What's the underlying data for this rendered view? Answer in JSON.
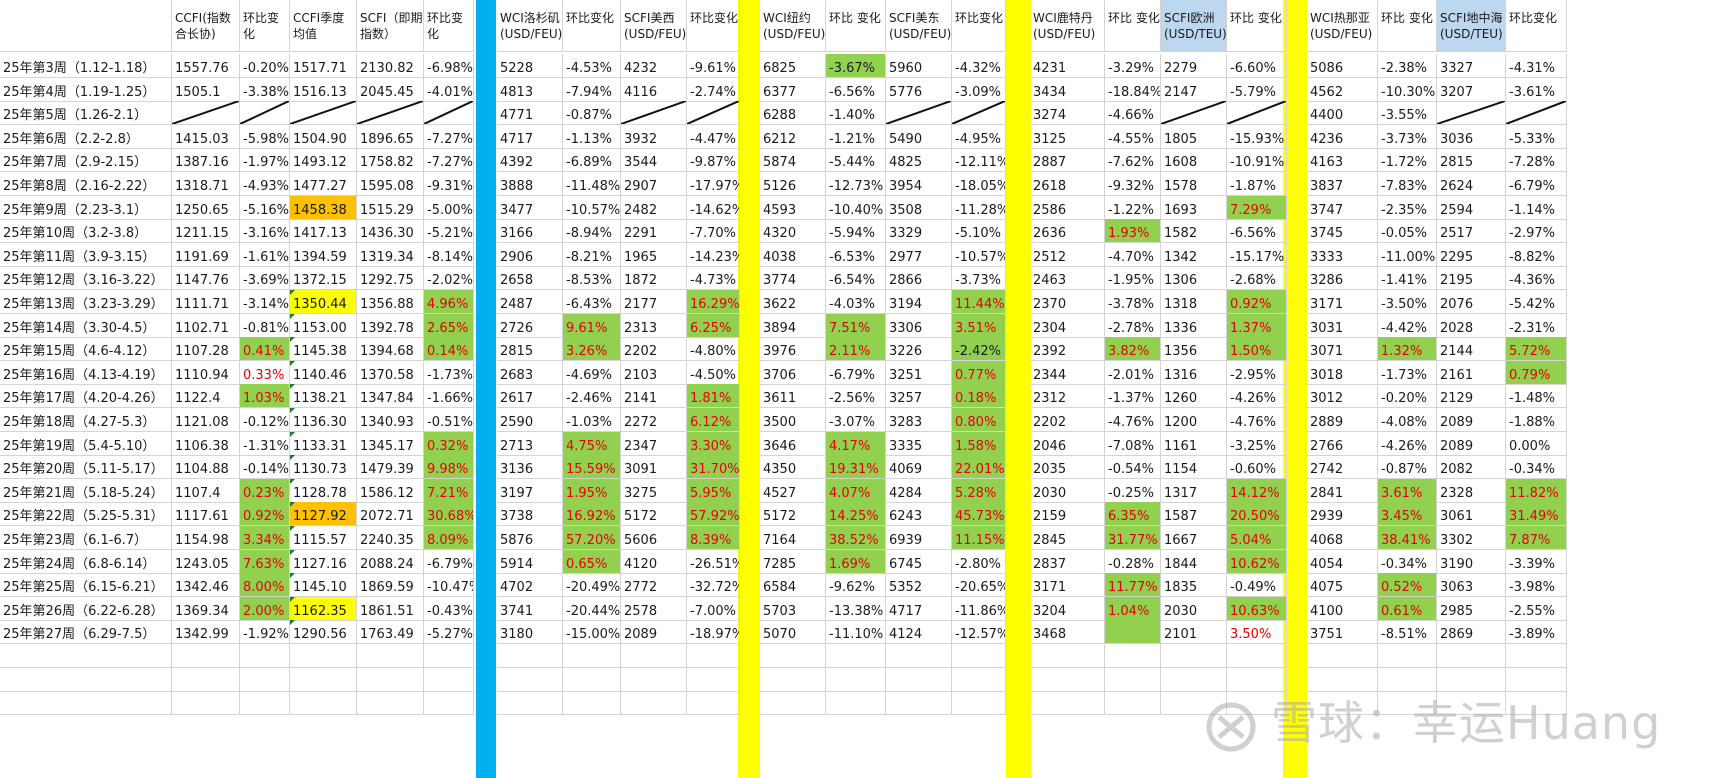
{
  "headers": [
    "",
    "CCFI(指数合长协)",
    "环比变化",
    "CCFI季度均值",
    "SCFI（即期指数）",
    "环比变化",
    "WCI洛杉矶(USD/FEU)",
    "环比变化",
    "SCFI美西(USD/FEU)",
    "环比变化",
    "WCI纽约(USD/FEU)",
    "环比 变化",
    "SCFI美东(USD/FEU)",
    "环比变化",
    "WCI鹿特丹(USD/FEU)",
    "环比 变化",
    "SCFI欧洲(USD/TEU)",
    "环比 变化",
    "WCI热那亚(USD/FEU)",
    "环比 变化",
    "SCFI地中海(USD/TEU)",
    "环比变化"
  ],
  "rows": [
    [
      "25年第3周（1.12-1.18）",
      "1557.76",
      "-0.20%",
      "1517.71",
      "2130.82",
      "-6.98%",
      "5228",
      "-4.53%",
      "4232",
      "-9.61%",
      "6825",
      "-3.67%",
      "5960",
      "-4.32%",
      "4231",
      "-3.29%",
      "2279",
      "-6.60%",
      "5086",
      "-2.38%",
      "3327",
      "-4.31%"
    ],
    [
      "25年第4周（1.19-1.25）",
      "1505.1",
      "-3.38%",
      "1516.13",
      "2045.45",
      "-4.01%",
      "4813",
      "-7.94%",
      "4116",
      "-2.74%",
      "6377",
      "-6.56%",
      "5776",
      "-3.09%",
      "3434",
      "-18.84%",
      "2147",
      "-5.79%",
      "4562",
      "-10.30%",
      "3207",
      "-3.61%"
    ],
    [
      "25年第5周（1.26-2.1）",
      "",
      "",
      "",
      "",
      "",
      "4771",
      "-0.87%",
      "",
      "",
      "6288",
      "-1.40%",
      "",
      "",
      "3274",
      "-4.66%",
      "",
      "",
      "4400",
      "-3.55%",
      "",
      ""
    ],
    [
      "25年第6周（2.2-2.8）",
      "1415.03",
      "-5.98%",
      "1504.90",
      "1896.65",
      "-7.27%",
      "4717",
      "-1.13%",
      "3932",
      "-4.47%",
      "6212",
      "-1.21%",
      "5490",
      "-4.95%",
      "3125",
      "-4.55%",
      "1805",
      "-15.93%",
      "4236",
      "-3.73%",
      "3036",
      "-5.33%"
    ],
    [
      "25年第7周（2.9-2.15）",
      "1387.16",
      "-1.97%",
      "1493.12",
      "1758.82",
      "-7.27%",
      "4392",
      "-6.89%",
      "3544",
      "-9.87%",
      "5874",
      "-5.44%",
      "4825",
      "-12.11%",
      "2887",
      "-7.62%",
      "1608",
      "-10.91%",
      "4163",
      "-1.72%",
      "2815",
      "-7.28%"
    ],
    [
      "25年第8周（2.16-2.22）",
      "1318.71",
      "-4.93%",
      "1477.27",
      "1595.08",
      "-9.31%",
      "3888",
      "-11.48%",
      "2907",
      "-17.97%",
      "5126",
      "-12.73%",
      "3954",
      "-18.05%",
      "2618",
      "-9.32%",
      "1578",
      "-1.87%",
      "3837",
      "-7.83%",
      "2624",
      "-6.79%"
    ],
    [
      "25年第9周（2.23-3.1）",
      "1250.65",
      "-5.16%",
      "1458.38",
      "1515.29",
      "-5.00%",
      "3477",
      "-10.57%",
      "2482",
      "-14.62%",
      "4593",
      "-10.40%",
      "3508",
      "-11.28%",
      "2586",
      "-1.22%",
      "1693",
      "7.29%",
      "3747",
      "-2.35%",
      "2594",
      "-1.14%"
    ],
    [
      "25年第10周（3.2-3.8）",
      "1211.15",
      "-3.16%",
      "1417.13",
      "1436.30",
      "-5.21%",
      "3166",
      "-8.94%",
      "2291",
      "-7.70%",
      "4320",
      "-5.94%",
      "3329",
      "-5.10%",
      "2636",
      "1.93%",
      "1582",
      "-6.56%",
      "3745",
      "-0.05%",
      "2517",
      "-2.97%"
    ],
    [
      "25年第11周（3.9-3.15）",
      "1191.69",
      "-1.61%",
      "1394.59",
      "1319.34",
      "-8.14%",
      "2906",
      "-8.21%",
      "1965",
      "-14.23%",
      "4038",
      "-6.53%",
      "2977",
      "-10.57%",
      "2512",
      "-4.70%",
      "1342",
      "-15.17%",
      "3333",
      "-11.00%",
      "2295",
      "-8.82%"
    ],
    [
      "25年第12周（3.16-3.22）",
      "1147.76",
      "-3.69%",
      "1372.15",
      "1292.75",
      "-2.02%",
      "2658",
      "-8.53%",
      "1872",
      "-4.73%",
      "3774",
      "-6.54%",
      "2866",
      "-3.73%",
      "2463",
      "-1.95%",
      "1306",
      "-2.68%",
      "3286",
      "-1.41%",
      "2195",
      "-4.36%"
    ],
    [
      "25年第13周（3.23-3.29）",
      "1111.71",
      "-3.14%",
      "1350.44",
      "1356.88",
      "4.96%",
      "2487",
      "-6.43%",
      "2177",
      "16.29%",
      "3622",
      "-4.03%",
      "3194",
      "11.44%",
      "2370",
      "-3.78%",
      "1318",
      "0.92%",
      "3171",
      "-3.50%",
      "2076",
      "-5.42%"
    ],
    [
      "25年第14周（3.30-4.5）",
      "1102.71",
      "-0.81%",
      "1153.00",
      "1392.78",
      "2.65%",
      "2726",
      "9.61%",
      "2313",
      "6.25%",
      "3894",
      "7.51%",
      "3306",
      "3.51%",
      "2304",
      "-2.78%",
      "1336",
      "1.37%",
      "3031",
      "-4.42%",
      "2028",
      "-2.31%"
    ],
    [
      "25年第15周（4.6-4.12）",
      "1107.28",
      "0.41%",
      "1145.38",
      "1394.68",
      "0.14%",
      "2815",
      "3.26%",
      "2202",
      "-4.80%",
      "3976",
      "2.11%",
      "3226",
      "-2.42%",
      "2392",
      "3.82%",
      "1356",
      "1.50%",
      "3071",
      "1.32%",
      "2144",
      "5.72%"
    ],
    [
      "25年第16周（4.13-4.19）",
      "1110.94",
      "0.33%",
      "1140.46",
      "1370.58",
      "-1.73%",
      "2683",
      "-4.69%",
      "2103",
      "-4.50%",
      "3706",
      "-6.79%",
      "3251",
      "0.77%",
      "2344",
      "-2.01%",
      "1316",
      "-2.95%",
      "3018",
      "-1.73%",
      "2161",
      "0.79%"
    ],
    [
      "25年第17周（4.20-4.26）",
      "1122.4",
      "1.03%",
      "1138.21",
      "1347.84",
      "-1.66%",
      "2617",
      "-2.46%",
      "2141",
      "1.81%",
      "3611",
      "-2.56%",
      "3257",
      "0.18%",
      "2312",
      "-1.37%",
      "1260",
      "-4.26%",
      "3012",
      "-0.20%",
      "2129",
      "-1.48%"
    ],
    [
      "25年第18周（4.27-5.3）",
      "1121.08",
      "-0.12%",
      "1136.30",
      "1340.93",
      "-0.51%",
      "2590",
      "-1.03%",
      "2272",
      "6.12%",
      "3500",
      "-3.07%",
      "3283",
      "0.80%",
      "2202",
      "-4.76%",
      "1200",
      "-4.76%",
      "2889",
      "-4.08%",
      "2089",
      "-1.88%"
    ],
    [
      "25年第19周（5.4-5.10）",
      "1106.38",
      "-1.31%",
      "1133.31",
      "1345.17",
      "0.32%",
      "2713",
      "4.75%",
      "2347",
      "3.30%",
      "3646",
      "4.17%",
      "3335",
      "1.58%",
      "2046",
      "-7.08%",
      "1161",
      "-3.25%",
      "2766",
      "-4.26%",
      "2089",
      "0.00%"
    ],
    [
      "25年第20周（5.11-5.17）",
      "1104.88",
      "-0.14%",
      "1130.73",
      "1479.39",
      "9.98%",
      "3136",
      "15.59%",
      "3091",
      "31.70%",
      "4350",
      "19.31%",
      "4069",
      "22.01%",
      "2035",
      "-0.54%",
      "1154",
      "-0.60%",
      "2742",
      "-0.87%",
      "2082",
      "-0.34%"
    ],
    [
      "25年第21周（5.18-5.24）",
      "1107.4",
      "0.23%",
      "1128.78",
      "1586.12",
      "7.21%",
      "3197",
      "1.95%",
      "3275",
      "5.95%",
      "4527",
      "4.07%",
      "4284",
      "5.28%",
      "2030",
      "-0.25%",
      "1317",
      "14.12%",
      "2841",
      "3.61%",
      "2328",
      "11.82%"
    ],
    [
      "25年第22周（5.25-5.31）",
      "1117.61",
      "0.92%",
      "1127.92",
      "2072.71",
      "30.68%",
      "3738",
      "16.92%",
      "5172",
      "57.92%",
      "5172",
      "14.25%",
      "6243",
      "45.73%",
      "2159",
      "6.35%",
      "1587",
      "20.50%",
      "2939",
      "3.45%",
      "3061",
      "31.49%"
    ],
    [
      "25年第23周（6.1-6.7）",
      "1154.98",
      "3.34%",
      "1115.57",
      "2240.35",
      "8.09%",
      "5876",
      "57.20%",
      "5606",
      "8.39%",
      "7164",
      "38.52%",
      "6939",
      "11.15%",
      "2845",
      "31.77%",
      "1667",
      "5.04%",
      "4068",
      "38.41%",
      "3302",
      "7.87%"
    ],
    [
      "25年第24周（6.8-6.14）",
      "1243.05",
      "7.63%",
      "1127.16",
      "2088.24",
      "-6.79%",
      "5914",
      "0.65%",
      "4120",
      "-26.51%",
      "7285",
      "1.69%",
      "6745",
      "-2.80%",
      "2837",
      "-0.28%",
      "1844",
      "10.62%",
      "4054",
      "-0.34%",
      "3190",
      "-3.39%"
    ],
    [
      "25年第25周（6.15-6.21）",
      "1342.46",
      "8.00%",
      "1145.10",
      "1869.59",
      "-10.47%",
      "4702",
      "-20.49%",
      "2772",
      "-32.72%",
      "6584",
      "-9.62%",
      "5352",
      "-20.65%",
      "3171",
      "11.77%",
      "1835",
      "-0.49%",
      "4075",
      "0.52%",
      "3063",
      "-3.98%"
    ],
    [
      "25年第26周（6.22-6.28）",
      "1369.34",
      "2.00%",
      "1162.35",
      "1861.51",
      "-0.43%",
      "3741",
      "-20.44%",
      "2578",
      "-7.00%",
      "5703",
      "-13.38%",
      "4717",
      "-11.86%",
      "3204",
      "1.04%",
      "2030",
      "10.63%",
      "4100",
      "0.61%",
      "2985",
      "-2.55%"
    ],
    [
      "25年第27周（6.29-7.5）",
      "1342.99",
      "-1.92%",
      "1290.56",
      "1763.49",
      "-5.27%",
      "3180",
      "-15.00%",
      "2089",
      "-18.97%",
      "5070",
      "-11.10%",
      "4124",
      "-12.57%",
      "3468",
      "",
      "2101",
      "3.50%",
      "3751",
      "-8.51%",
      "2869",
      "-3.89%"
    ]
  ],
  "highlights": {
    "orange": [
      "6-3",
      "19-3"
    ],
    "yellow": [
      "10-3",
      "23-3"
    ],
    "green": [
      "0-11",
      "6-17",
      "7-15",
      "10-5",
      "10-9",
      "10-13",
      "10-17",
      "11-5",
      "11-7",
      "11-9",
      "11-11",
      "11-13",
      "11-17",
      "12-2",
      "12-5",
      "12-7",
      "12-11",
      "12-13",
      "12-15",
      "12-17",
      "12-19",
      "12-21",
      "13-13",
      "13-21",
      "14-2",
      "14-9",
      "14-13",
      "15-9",
      "15-13",
      "16-5",
      "16-7",
      "16-9",
      "16-11",
      "16-13",
      "17-5",
      "17-7",
      "17-9",
      "17-11",
      "17-13",
      "18-2",
      "18-5",
      "18-7",
      "18-9",
      "18-11",
      "18-13",
      "18-17",
      "18-19",
      "18-21",
      "19-2",
      "19-5",
      "19-7",
      "19-9",
      "19-11",
      "19-13",
      "19-15",
      "19-17",
      "19-19",
      "19-21",
      "20-2",
      "20-5",
      "20-7",
      "20-9",
      "20-11",
      "20-13",
      "20-15",
      "20-17",
      "20-19",
      "20-21",
      "21-2",
      "21-7",
      "21-11",
      "21-17",
      "22-2",
      "22-15",
      "22-19",
      "23-2",
      "23-15",
      "23-17",
      "23-19",
      "24-15"
    ]
  },
  "colors": {
    "up_red": "#e60000",
    "green_fill": "#92d050",
    "orange_fill": "#ffc000",
    "yellow_fill": "#ffff00",
    "header_blue_fill": "#bdd7ee",
    "divider_blue": "#00b0f0",
    "divider_yellow": "#ffff00"
  },
  "watermark": {
    "text": "雪球：幸运Huang",
    "logo_icon": "snowball-logo-icon"
  }
}
